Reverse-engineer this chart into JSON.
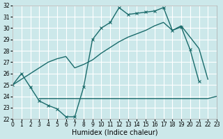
{
  "bg_color": "#cce8ea",
  "grid_color": "#ffffff",
  "line_color": "#1a6b6b",
  "xlabel": "Humidex (Indice chaleur)",
  "xlim": [
    0,
    23
  ],
  "ylim": [
    22,
    32
  ],
  "x_ticks": [
    0,
    1,
    2,
    3,
    4,
    5,
    6,
    7,
    8,
    9,
    10,
    11,
    12,
    13,
    14,
    15,
    16,
    17,
    18,
    19,
    20,
    21,
    22,
    23
  ],
  "y_ticks": [
    22,
    23,
    24,
    25,
    26,
    27,
    28,
    29,
    30,
    31,
    32
  ],
  "series": [
    {
      "x": [
        0,
        1,
        2,
        3,
        4,
        5,
        6,
        7,
        8,
        9,
        10,
        11,
        12,
        13,
        14,
        15,
        16,
        17,
        18,
        19,
        20,
        21
      ],
      "y": [
        25.0,
        26.0,
        24.8,
        23.6,
        23.2,
        22.9,
        22.2,
        22.2,
        24.8,
        29.0,
        30.0,
        30.5,
        31.8,
        31.2,
        31.3,
        31.4,
        31.5,
        31.8,
        29.8,
        30.1,
        28.1,
        25.3
      ],
      "marker": "x"
    },
    {
      "x": [
        0,
        1,
        2,
        3,
        4,
        5,
        6,
        7,
        8,
        9,
        10,
        11,
        12,
        13,
        14,
        15,
        16,
        17,
        18,
        19,
        20,
        21,
        22
      ],
      "y": [
        25.0,
        25.5,
        26.0,
        26.5,
        27.0,
        27.3,
        27.5,
        26.5,
        26.8,
        27.2,
        27.8,
        28.3,
        28.8,
        29.2,
        29.5,
        29.8,
        30.2,
        30.5,
        29.8,
        30.2,
        29.2,
        28.2,
        25.5
      ],
      "marker": null
    },
    {
      "x": [
        3,
        4,
        5,
        6,
        7,
        8,
        9,
        10,
        11,
        12,
        13,
        14,
        15,
        16,
        17,
        18,
        19,
        20,
        21,
        22,
        23
      ],
      "y": [
        23.8,
        23.8,
        23.8,
        23.8,
        23.8,
        23.8,
        23.8,
        23.8,
        23.8,
        23.8,
        23.8,
        23.8,
        23.8,
        23.8,
        23.8,
        23.8,
        23.8,
        23.8,
        23.8,
        23.8,
        24.0
      ],
      "marker": null
    }
  ]
}
